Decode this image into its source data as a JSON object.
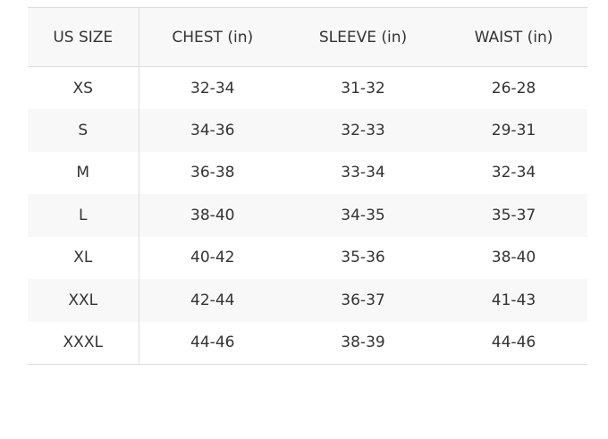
{
  "table": {
    "header": [
      "US SIZE",
      "CHEST (in)",
      "SLEEVE (in)",
      "WAIST (in)"
    ],
    "rows": [
      [
        "XS",
        "32-34",
        "31-32",
        "26-28"
      ],
      [
        "S",
        "34-36",
        "32-33",
        "29-31"
      ],
      [
        "M",
        "36-38",
        "33-34",
        "32-34"
      ],
      [
        "L",
        "38-40",
        "34-35",
        "35-37"
      ],
      [
        "XL",
        "40-42",
        "35-36",
        "38-40"
      ],
      [
        "XXL",
        "42-44",
        "36-37",
        "41-43"
      ],
      [
        "XXXL",
        "44-46",
        "38-39",
        "44-46"
      ]
    ]
  }
}
